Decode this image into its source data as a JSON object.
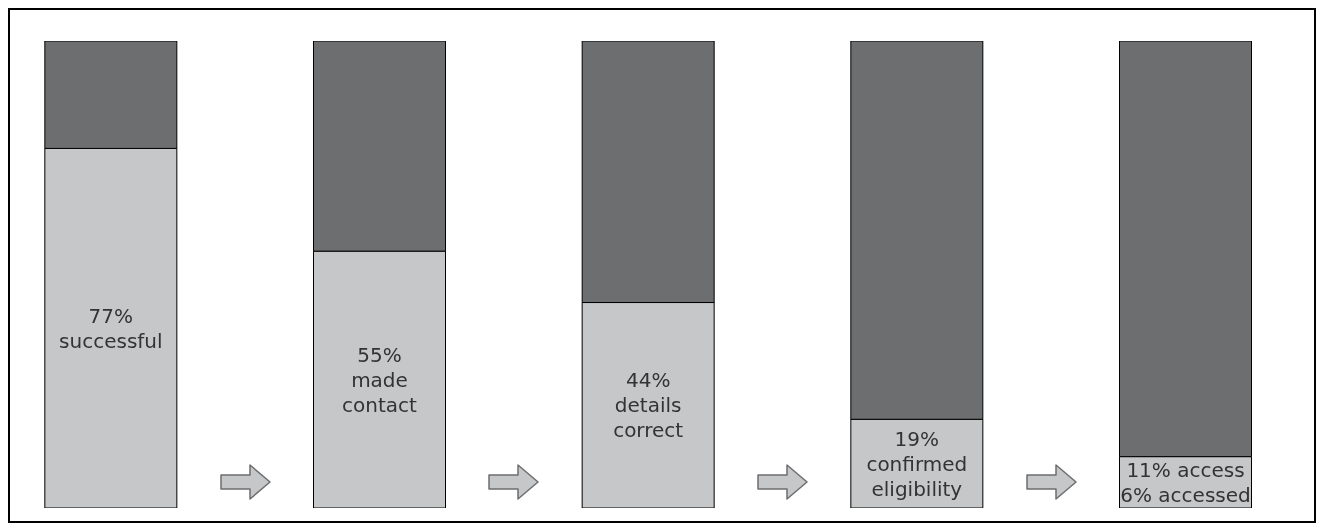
{
  "chart_data": {
    "type": "bar",
    "stacked": true,
    "categories": [
      null,
      null,
      null,
      null,
      null
    ],
    "ylim": [
      0,
      100
    ],
    "tick_labels": false,
    "grid": false,
    "legend": false,
    "series": [
      {
        "color": "#c6c7c8",
        "values": [
          77,
          55,
          44,
          19,
          11
        ],
        "value_labels": [
          "77%\nsuccessful",
          "55%\nmade\ncontact",
          "44%\ndetails\ncorrect",
          "19%\nconfirmed\neligibility",
          "11% access\n6% accessed"
        ]
      },
      {
        "color": "#6d6e70",
        "values": [
          23,
          45,
          56,
          81,
          89
        ]
      }
    ]
  }
}
